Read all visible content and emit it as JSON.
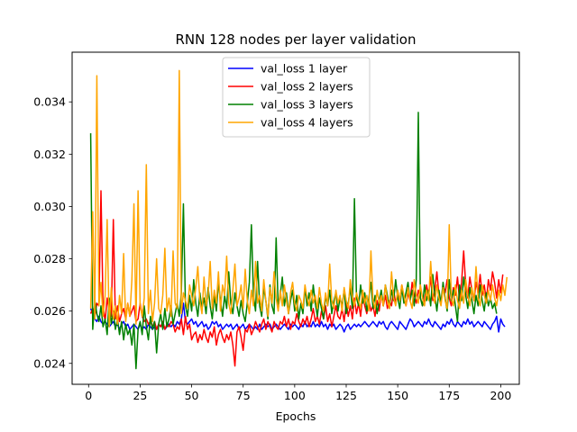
{
  "chart_data": {
    "type": "line",
    "title": "RNN 128 nodes per layer validation",
    "xlabel": "Epochs",
    "ylabel": "",
    "xlim": [
      -8,
      209
    ],
    "ylim": [
      0.0232,
      0.0359
    ],
    "xticks": [
      0,
      25,
      50,
      75,
      100,
      125,
      150,
      175,
      200
    ],
    "yticks": [
      0.024,
      0.026,
      0.028,
      0.03,
      0.032,
      0.034
    ],
    "ytick_labels": [
      "0.024",
      "0.026",
      "0.028",
      "0.030",
      "0.032",
      "0.034"
    ],
    "grid": false,
    "legend_position": "top-center",
    "series": [
      {
        "name": "val_loss 1 layer",
        "color": "#0000ff",
        "values": [
          0.0261,
          0.0259,
          0.0257,
          0.0256,
          0.0258,
          0.0256,
          0.0255,
          0.0256,
          0.0255,
          0.0254,
          0.0255,
          0.0256,
          0.0254,
          0.0255,
          0.0253,
          0.0255,
          0.0256,
          0.0254,
          0.0255,
          0.0253,
          0.0254,
          0.0255,
          0.0254,
          0.0253,
          0.0255,
          0.0253,
          0.0254,
          0.0253,
          0.0255,
          0.0254,
          0.0253,
          0.0254,
          0.0253,
          0.0255,
          0.0254,
          0.0256,
          0.0253,
          0.0254,
          0.0255,
          0.0254,
          0.0255,
          0.0254,
          0.0256,
          0.0255,
          0.0257,
          0.0263,
          0.0256,
          0.0255,
          0.0256,
          0.0257,
          0.0255,
          0.0256,
          0.0254,
          0.0255,
          0.0256,
          0.0254,
          0.0255,
          0.0253,
          0.0254,
          0.0256,
          0.0255,
          0.0256,
          0.0254,
          0.0255,
          0.0253,
          0.0254,
          0.0255,
          0.0254,
          0.0255,
          0.0253,
          0.0254,
          0.0255,
          0.0253,
          0.0254,
          0.0255,
          0.0253,
          0.0254,
          0.0255,
          0.0254,
          0.0253,
          0.0254,
          0.0253,
          0.0255,
          0.0253,
          0.0254,
          0.0255,
          0.0254,
          0.0255,
          0.0253,
          0.0254,
          0.0255,
          0.0254,
          0.0253,
          0.0254,
          0.0255,
          0.0254,
          0.0253,
          0.0255,
          0.0254,
          0.0255,
          0.0254,
          0.0253,
          0.0255,
          0.0254,
          0.0256,
          0.0254,
          0.0255,
          0.0254,
          0.0256,
          0.0254,
          0.0255,
          0.0254,
          0.0256,
          0.0254,
          0.0255,
          0.0253,
          0.0255,
          0.0254,
          0.0255,
          0.0253,
          0.0254,
          0.0255,
          0.0254,
          0.0252,
          0.0254,
          0.0255,
          0.0253,
          0.0254,
          0.0255,
          0.0254,
          0.0255,
          0.0254,
          0.0255,
          0.0256,
          0.0255,
          0.0254,
          0.0255,
          0.0256,
          0.0255,
          0.0254,
          0.0256,
          0.0255,
          0.0256,
          0.0254,
          0.0253,
          0.0255,
          0.0256,
          0.0255,
          0.0254,
          0.0253,
          0.0256,
          0.0255,
          0.0254,
          0.0253,
          0.0255,
          0.0257,
          0.0256,
          0.0254,
          0.0255,
          0.0256,
          0.0255,
          0.0254,
          0.0256,
          0.0255,
          0.0257,
          0.0255,
          0.0254,
          0.0256,
          0.0255,
          0.0254,
          0.0253,
          0.0255,
          0.0254,
          0.0256,
          0.0255,
          0.0257,
          0.0255,
          0.0254,
          0.0256,
          0.0255,
          0.0254,
          0.0256,
          0.0255,
          0.0257,
          0.0255,
          0.0256,
          0.0254,
          0.0255,
          0.0256,
          0.0255,
          0.0254,
          0.0256,
          0.0255,
          0.0254,
          0.0253,
          0.0255,
          0.0256,
          0.0258,
          0.0252,
          0.0257,
          0.0255,
          0.0254
        ]
      },
      {
        "name": "val_loss 2 layers",
        "color": "#ff0000",
        "values": [
          0.0259,
          0.0261,
          0.0258,
          0.0263,
          0.0262,
          0.0306,
          0.0262,
          0.0256,
          0.0265,
          0.026,
          0.0258,
          0.0295,
          0.0257,
          0.0262,
          0.0256,
          0.0259,
          0.0261,
          0.0257,
          0.0263,
          0.0258,
          0.026,
          0.0262,
          0.0256,
          0.0257,
          0.0263,
          0.0258,
          0.0256,
          0.0257,
          0.0255,
          0.0256,
          0.0254,
          0.0256,
          0.0253,
          0.0255,
          0.0254,
          0.0256,
          0.0253,
          0.0255,
          0.0254,
          0.0256,
          0.0255,
          0.0252,
          0.0254,
          0.0253,
          0.0257,
          0.0251,
          0.0258,
          0.0253,
          0.0255,
          0.0249,
          0.0251,
          0.0252,
          0.0248,
          0.0251,
          0.0249,
          0.0253,
          0.025,
          0.0248,
          0.0252,
          0.025,
          0.0254,
          0.0247,
          0.0251,
          0.0253,
          0.025,
          0.0248,
          0.0251,
          0.0249,
          0.0252,
          0.0247,
          0.0239,
          0.0252,
          0.0254,
          0.025,
          0.0245,
          0.0253,
          0.0252,
          0.0255,
          0.0251,
          0.0253,
          0.0256,
          0.0254,
          0.0252,
          0.0255,
          0.0257,
          0.0253,
          0.0256,
          0.0254,
          0.0252,
          0.0256,
          0.0254,
          0.0253,
          0.0256,
          0.0255,
          0.0258,
          0.0254,
          0.0257,
          0.0253,
          0.0256,
          0.0255,
          0.0259,
          0.0256,
          0.0254,
          0.0257,
          0.0255,
          0.0258,
          0.0254,
          0.0257,
          0.0261,
          0.0256,
          0.0258,
          0.0255,
          0.026,
          0.0257,
          0.0262,
          0.0256,
          0.0259,
          0.0254,
          0.0258,
          0.0262,
          0.0258,
          0.0257,
          0.0261,
          0.0256,
          0.0263,
          0.0258,
          0.0262,
          0.0257,
          0.0265,
          0.0259,
          0.0263,
          0.0258,
          0.0266,
          0.0262,
          0.0259,
          0.0264,
          0.026,
          0.0262,
          0.0258,
          0.0264,
          0.026,
          0.0267,
          0.0262,
          0.0266,
          0.0261,
          0.0264,
          0.0262,
          0.0268,
          0.0263,
          0.0266,
          0.0264,
          0.027,
          0.0265,
          0.0262,
          0.0267,
          0.0264,
          0.0271,
          0.0266,
          0.0263,
          0.0268,
          0.0265,
          0.0262,
          0.0264,
          0.027,
          0.0266,
          0.0273,
          0.0264,
          0.0268,
          0.0275,
          0.0266,
          0.0263,
          0.027,
          0.0267,
          0.0272,
          0.0265,
          0.0262,
          0.0269,
          0.0266,
          0.0273,
          0.0264,
          0.0271,
          0.0283,
          0.027,
          0.0265,
          0.0273,
          0.0268,
          0.0264,
          0.0271,
          0.0267,
          0.0274,
          0.0266,
          0.027,
          0.0264,
          0.0272,
          0.0268,
          0.0275,
          0.0271,
          0.0265,
          0.0272,
          0.0267,
          0.0274
        ]
      },
      {
        "name": "val_loss 3 layers",
        "color": "#008000",
        "values": [
          0.0328,
          0.0253,
          0.0264,
          0.0259,
          0.0256,
          0.0262,
          0.0254,
          0.0257,
          0.0251,
          0.0265,
          0.0255,
          0.026,
          0.0253,
          0.0257,
          0.0251,
          0.0256,
          0.0249,
          0.0255,
          0.0251,
          0.0253,
          0.0247,
          0.0255,
          0.0238,
          0.0253,
          0.0256,
          0.0251,
          0.0262,
          0.0254,
          0.0249,
          0.0258,
          0.0253,
          0.0256,
          0.0244,
          0.0255,
          0.0259,
          0.0253,
          0.0261,
          0.0254,
          0.0257,
          0.0262,
          0.0255,
          0.0259,
          0.0263,
          0.0258,
          0.0267,
          0.0301,
          0.0262,
          0.0258,
          0.0266,
          0.026,
          0.0272,
          0.0263,
          0.0258,
          0.0267,
          0.0261,
          0.0265,
          0.0259,
          0.0269,
          0.0262,
          0.0257,
          0.0266,
          0.026,
          0.0271,
          0.0264,
          0.0258,
          0.0266,
          0.0261,
          0.0275,
          0.0263,
          0.0259,
          0.0267,
          0.0262,
          0.0258,
          0.0264,
          0.0259,
          0.0256,
          0.0263,
          0.0271,
          0.0293,
          0.0266,
          0.026,
          0.0279,
          0.0262,
          0.0258,
          0.0269,
          0.0264,
          0.0257,
          0.027,
          0.0262,
          0.0259,
          0.0288,
          0.0261,
          0.0266,
          0.0273,
          0.0262,
          0.0267,
          0.0259,
          0.0264,
          0.0268,
          0.026,
          0.0266,
          0.0257,
          0.0263,
          0.0259,
          0.0269,
          0.0262,
          0.0267,
          0.026,
          0.027,
          0.0263,
          0.0258,
          0.0265,
          0.0261,
          0.0257,
          0.0266,
          0.0262,
          0.0268,
          0.0259,
          0.0264,
          0.0267,
          0.026,
          0.0265,
          0.0262,
          0.0268,
          0.0259,
          0.0263,
          0.0269,
          0.0261,
          0.0303,
          0.0265,
          0.0262,
          0.027,
          0.0263,
          0.0267,
          0.026,
          0.0265,
          0.0271,
          0.0261,
          0.0266,
          0.0259,
          0.0264,
          0.0268,
          0.0262,
          0.027,
          0.0266,
          0.0261,
          0.0268,
          0.0264,
          0.0272,
          0.0265,
          0.0261,
          0.0269,
          0.0263,
          0.0267,
          0.0271,
          0.0264,
          0.0268,
          0.0262,
          0.0272,
          0.0336,
          0.0265,
          0.0262,
          0.027,
          0.0264,
          0.0268,
          0.0262,
          0.0274,
          0.0266,
          0.026,
          0.0268,
          0.0263,
          0.0271,
          0.0265,
          0.026,
          0.0272,
          0.0264,
          0.0268,
          0.0262,
          0.0256,
          0.027,
          0.0264,
          0.0273,
          0.0266,
          0.0261,
          0.0269,
          0.0264,
          0.0259,
          0.0266,
          0.0262,
          0.027,
          0.0264,
          0.026,
          0.0267,
          0.0262,
          0.0265,
          0.0261,
          0.0263,
          0.0259
        ]
      },
      {
        "name": "val_loss 4 layers",
        "color": "#ffa500",
        "values": [
          0.0261,
          0.0298,
          0.0257,
          0.035,
          0.0262,
          0.0271,
          0.0258,
          0.0266,
          0.0295,
          0.0254,
          0.0269,
          0.0257,
          0.0262,
          0.0255,
          0.0266,
          0.0259,
          0.0282,
          0.0256,
          0.0263,
          0.0258,
          0.0272,
          0.0301,
          0.0255,
          0.0306,
          0.0262,
          0.0258,
          0.0265,
          0.0316,
          0.0259,
          0.0268,
          0.0256,
          0.0263,
          0.028,
          0.0261,
          0.0259,
          0.0266,
          0.0284,
          0.026,
          0.0265,
          0.0258,
          0.0283,
          0.0263,
          0.0261,
          0.0352,
          0.0259,
          0.0267,
          0.0264,
          0.0261,
          0.027,
          0.0266,
          0.0262,
          0.0269,
          0.0277,
          0.0264,
          0.0259,
          0.0273,
          0.0262,
          0.0266,
          0.0279,
          0.0261,
          0.0268,
          0.0263,
          0.0275,
          0.026,
          0.027,
          0.0266,
          0.0281,
          0.0263,
          0.0259,
          0.0268,
          0.0278,
          0.0262,
          0.0265,
          0.027,
          0.0261,
          0.0276,
          0.0264,
          0.0259,
          0.0268,
          0.0262,
          0.0279,
          0.0263,
          0.0266,
          0.026,
          0.0272,
          0.0264,
          0.0258,
          0.0269,
          0.0263,
          0.0275,
          0.0265,
          0.026,
          0.0268,
          0.0262,
          0.027,
          0.0264,
          0.0259,
          0.0267,
          0.0271,
          0.0263,
          0.026,
          0.0266,
          0.0264,
          0.0261,
          0.027,
          0.0265,
          0.0262,
          0.0268,
          0.0263,
          0.0266,
          0.0261,
          0.0269,
          0.0263,
          0.026,
          0.0267,
          0.0262,
          0.0278,
          0.0264,
          0.0261,
          0.0268,
          0.0263,
          0.0266,
          0.026,
          0.0269,
          0.0264,
          0.0261,
          0.0272,
          0.0265,
          0.0262,
          0.0267,
          0.0264,
          0.0261,
          0.0268,
          0.0263,
          0.0266,
          0.026,
          0.0283,
          0.0264,
          0.0261,
          0.0268,
          0.0263,
          0.0266,
          0.0262,
          0.027,
          0.0264,
          0.0261,
          0.0275,
          0.0265,
          0.0262,
          0.0268,
          0.0264,
          0.027,
          0.0266,
          0.0262,
          0.0269,
          0.0264,
          0.0261,
          0.0272,
          0.0266,
          0.0263,
          0.027,
          0.0265,
          0.0262,
          0.0268,
          0.0264,
          0.0279,
          0.0266,
          0.0263,
          0.027,
          0.0265,
          0.0262,
          0.0269,
          0.0264,
          0.0261,
          0.0293,
          0.0265,
          0.0262,
          0.027,
          0.0264,
          0.0261,
          0.0268,
          0.0263,
          0.0272,
          0.0266,
          0.0262,
          0.0269,
          0.0264,
          0.0277,
          0.0265,
          0.0262,
          0.027,
          0.0266,
          0.0263,
          0.0268,
          0.0264,
          0.027,
          0.0265,
          0.0262,
          0.0268,
          0.0264,
          0.027,
          0.0266,
          0.0273
        ]
      }
    ]
  }
}
